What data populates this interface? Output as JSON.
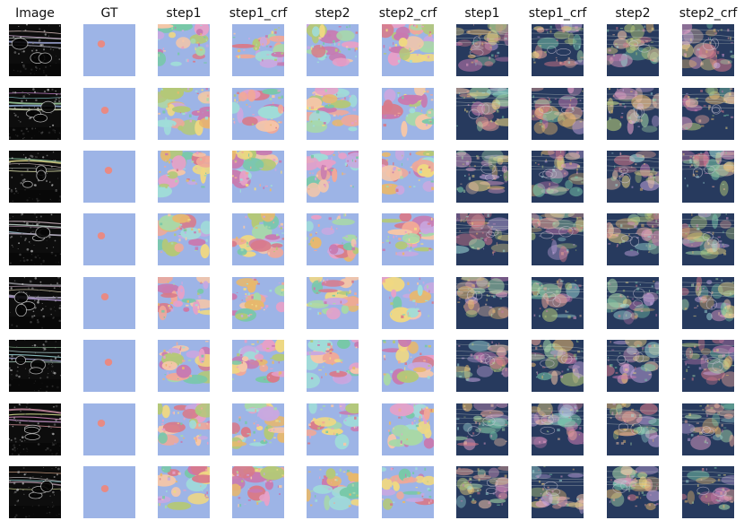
{
  "figure": {
    "column_headers": [
      "Image",
      "GT",
      "step1",
      "step1_crf",
      "step2",
      "step2_crf",
      "step1",
      "step1_crf",
      "step2",
      "step2_crf"
    ],
    "columns": [
      {
        "kind": "ultrasound"
      },
      {
        "kind": "ground-truth"
      },
      {
        "kind": "segmentation"
      },
      {
        "kind": "segmentation"
      },
      {
        "kind": "segmentation"
      },
      {
        "kind": "segmentation"
      },
      {
        "kind": "overlay"
      },
      {
        "kind": "overlay"
      },
      {
        "kind": "overlay"
      },
      {
        "kind": "overlay"
      }
    ],
    "row_count": 8,
    "colors": {
      "background_blue": "#9db4e6",
      "gt_spot": "#e88a84",
      "overlay_base": "#273a5e",
      "segment_palette": [
        "#e6a0c8",
        "#f0d882",
        "#a8d8a8",
        "#f0a898",
        "#a0dcd8",
        "#c8a8e0",
        "#f5c6a8",
        "#78c8a8",
        "#d87a8a",
        "#e8b86c",
        "#b4c878",
        "#c87ab0"
      ]
    }
  }
}
